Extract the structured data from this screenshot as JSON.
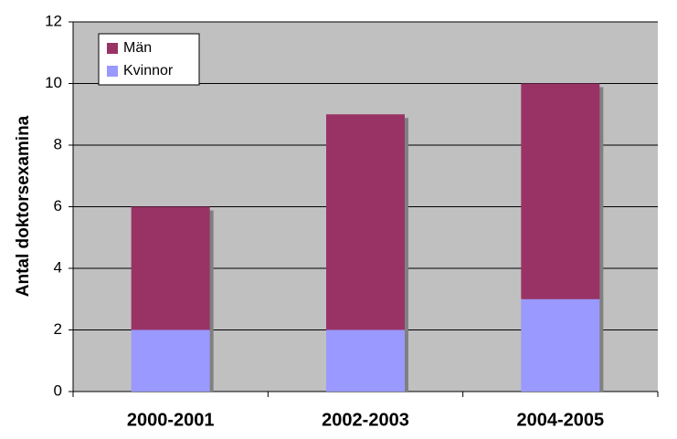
{
  "chart_data": {
    "type": "stacked_bar",
    "y_label": "Antal doktorsexamina",
    "categories": [
      "2000-2001",
      "2002-2003",
      "2004-2005"
    ],
    "series": [
      {
        "name": "Män",
        "color": "#993366",
        "values": [
          4,
          7,
          7
        ]
      },
      {
        "name": "Kvinnor",
        "color": "#9999ff",
        "values": [
          2,
          2,
          3
        ]
      }
    ],
    "ylim": [
      0,
      12
    ],
    "yticks": [
      0,
      2,
      4,
      6,
      8,
      10,
      12
    ],
    "grid": true,
    "legend": "top-left"
  }
}
